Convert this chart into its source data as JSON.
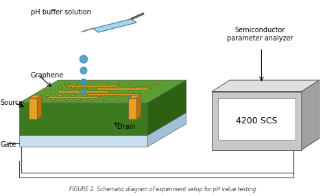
{
  "title": "FIGURE 2. Schematic diagram of experiment setup for pH value testing.",
  "bg_color": "#ffffff",
  "text_color": "#000000",
  "fig_width": 4.74,
  "fig_height": 2.86,
  "dpi": 100,
  "labels": {
    "ph_buffer": "pH buffer solution",
    "graphene": "Graphene",
    "source": "Source",
    "drain": "Drain",
    "gate": "Gate",
    "semiconductor": "Semiconductor\nparameter analyzer",
    "analyzer_model": "4200 SCS"
  },
  "colors": {
    "substrate_green": "#5a9e32",
    "substrate_green_dark": "#3d7a1e",
    "substrate_green_side": "#2d6010",
    "gate_dielectric": "#c8dff0",
    "gate_dielectric_side": "#a0c0d8",
    "electrode_gold": "#e8a020",
    "electrode_gold_dark": "#c07010",
    "box_gray": "#c8c8c8",
    "box_gray_dark": "#a0a0a0",
    "box_gray_top": "#e0e0e0",
    "wire_color": "#404040",
    "drop_blue": "#4090c0",
    "honeycomb_color": "#e8a020",
    "arrow_color": "#404040"
  }
}
